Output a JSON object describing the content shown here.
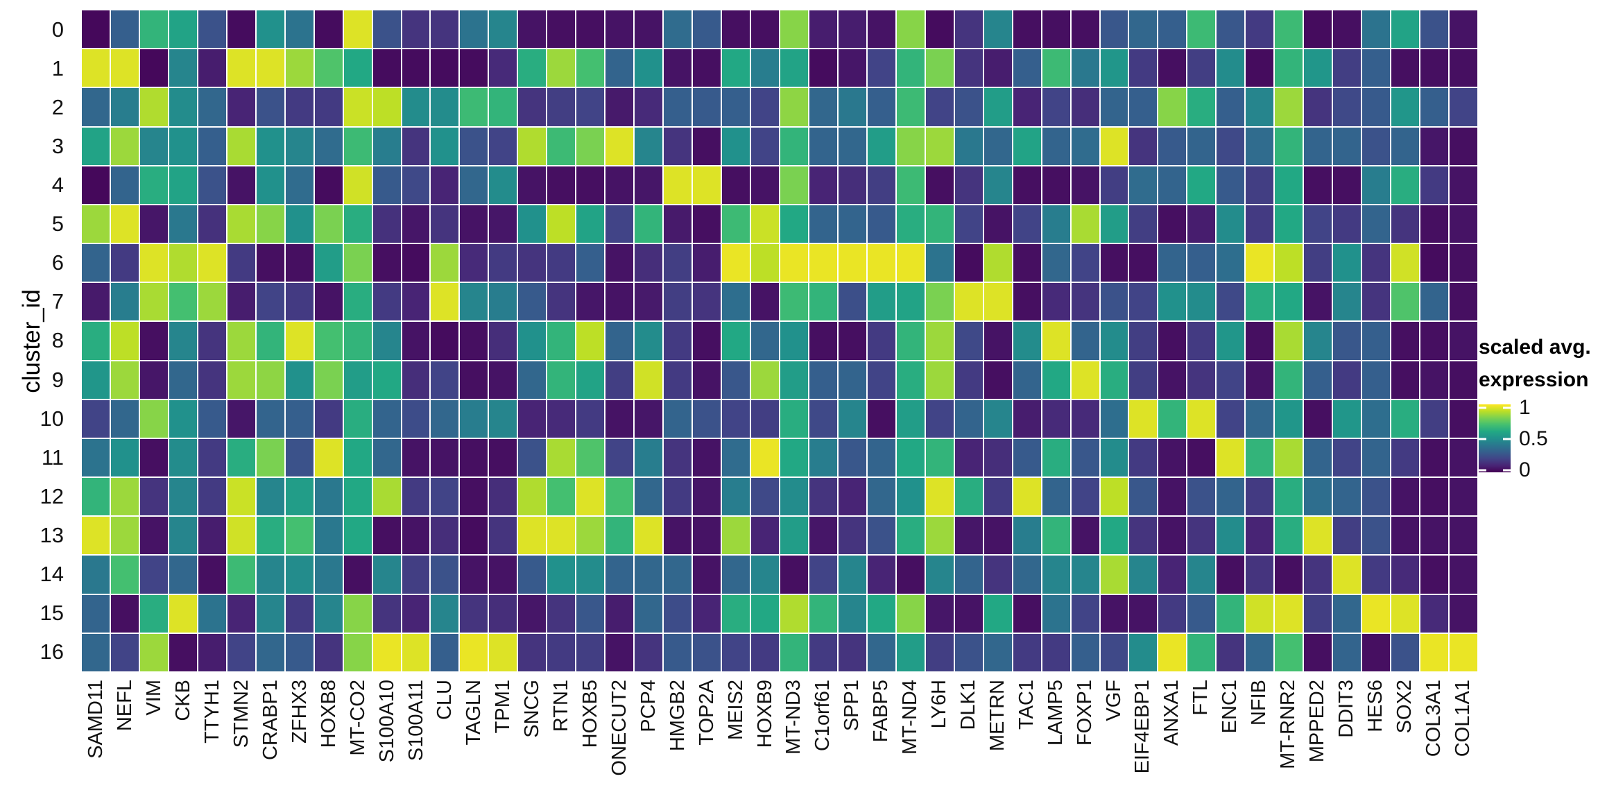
{
  "figure": {
    "y_axis_title": "cluster_id"
  },
  "legend": {
    "title_line1": "scaled avg.",
    "title_line2": "expression",
    "ticks": [
      {
        "label": "1",
        "value": 1
      },
      {
        "label": "0.5",
        "value": 0.5
      },
      {
        "label": "0",
        "value": 0
      }
    ]
  },
  "chart_data": {
    "type": "heatmap",
    "title": "",
    "xlabel": "",
    "ylabel": "cluster_id",
    "colorbar_title": "scaled avg. expression",
    "value_range": [
      0,
      1
    ],
    "grid_line_color": "#ffffff",
    "colormap": {
      "name": "viridis",
      "stops": [
        "#440154",
        "#482475",
        "#414487",
        "#355f8d",
        "#2a788e",
        "#21918c",
        "#22a884",
        "#44bf70",
        "#7ad151",
        "#bddf26",
        "#fde725"
      ]
    },
    "x_categories": [
      "SAMD11",
      "NEFL",
      "VIM",
      "CKB",
      "TTYH1",
      "STMN2",
      "CRABP1",
      "ZFHX3",
      "HOXB8",
      "MT-CO2",
      "S100A10",
      "S100A11",
      "CLU",
      "TAGLN",
      "TPM1",
      "SNCG",
      "RTN1",
      "HOXB5",
      "ONECUT2",
      "PCP4",
      "HMGB2",
      "TOP2A",
      "MEIS2",
      "HOXB9",
      "MT-ND3",
      "C1orf61",
      "SPP1",
      "FABP5",
      "MT-ND4",
      "LY6H",
      "DLK1",
      "METRN",
      "TAC1",
      "LAMP5",
      "FOXP1",
      "VGF",
      "EIF4EBP1",
      "ANXA1",
      "FTL",
      "ENC1",
      "NFIB",
      "MT-RNR2",
      "MPPED2",
      "DDIT3",
      "HES6",
      "SOX2",
      "COL3A1",
      "COL1A1"
    ],
    "y_categories": [
      "0",
      "1",
      "2",
      "3",
      "4",
      "5",
      "6",
      "7",
      "8",
      "9",
      "10",
      "11",
      "12",
      "13",
      "14",
      "15",
      "16"
    ],
    "values": [
      [
        0.02,
        0.3,
        0.65,
        0.58,
        0.25,
        0.03,
        0.5,
        0.38,
        0.03,
        0.95,
        0.25,
        0.15,
        0.15,
        0.38,
        0.45,
        0.05,
        0.04,
        0.04,
        0.05,
        0.05,
        0.35,
        0.28,
        0.04,
        0.04,
        0.82,
        0.08,
        0.08,
        0.05,
        0.82,
        0.03,
        0.15,
        0.45,
        0.04,
        0.04,
        0.04,
        0.27,
        0.33,
        0.3,
        0.68,
        0.27,
        0.17,
        0.68,
        0.03,
        0.04,
        0.38,
        0.58,
        0.25,
        0.05
      ],
      [
        0.95,
        0.95,
        0.02,
        0.45,
        0.08,
        0.95,
        0.95,
        0.85,
        0.72,
        0.6,
        0.03,
        0.03,
        0.03,
        0.03,
        0.12,
        0.62,
        0.85,
        0.7,
        0.32,
        0.5,
        0.05,
        0.04,
        0.6,
        0.42,
        0.58,
        0.03,
        0.06,
        0.2,
        0.65,
        0.8,
        0.15,
        0.08,
        0.3,
        0.68,
        0.4,
        0.52,
        0.17,
        0.04,
        0.18,
        0.48,
        0.03,
        0.65,
        0.52,
        0.18,
        0.3,
        0.04,
        0.04,
        0.04
      ],
      [
        0.33,
        0.42,
        0.88,
        0.48,
        0.33,
        0.1,
        0.25,
        0.17,
        0.17,
        0.92,
        0.9,
        0.48,
        0.48,
        0.68,
        0.65,
        0.15,
        0.18,
        0.2,
        0.07,
        0.12,
        0.3,
        0.28,
        0.3,
        0.2,
        0.83,
        0.33,
        0.4,
        0.3,
        0.68,
        0.2,
        0.25,
        0.55,
        0.1,
        0.2,
        0.13,
        0.32,
        0.3,
        0.82,
        0.62,
        0.3,
        0.45,
        0.85,
        0.15,
        0.22,
        0.28,
        0.52,
        0.3,
        0.2
      ],
      [
        0.58,
        0.85,
        0.45,
        0.5,
        0.3,
        0.87,
        0.5,
        0.45,
        0.35,
        0.68,
        0.42,
        0.15,
        0.5,
        0.25,
        0.2,
        0.88,
        0.68,
        0.8,
        0.95,
        0.45,
        0.15,
        0.04,
        0.5,
        0.2,
        0.65,
        0.32,
        0.33,
        0.55,
        0.82,
        0.85,
        0.4,
        0.33,
        0.58,
        0.32,
        0.35,
        0.95,
        0.15,
        0.28,
        0.32,
        0.22,
        0.35,
        0.65,
        0.32,
        0.32,
        0.25,
        0.32,
        0.06,
        0.04
      ],
      [
        0.02,
        0.32,
        0.62,
        0.58,
        0.25,
        0.05,
        0.5,
        0.35,
        0.03,
        0.93,
        0.28,
        0.22,
        0.1,
        0.33,
        0.48,
        0.05,
        0.04,
        0.04,
        0.05,
        0.06,
        0.95,
        0.95,
        0.04,
        0.05,
        0.8,
        0.1,
        0.13,
        0.18,
        0.68,
        0.04,
        0.15,
        0.45,
        0.04,
        0.04,
        0.05,
        0.18,
        0.35,
        0.32,
        0.6,
        0.28,
        0.18,
        0.6,
        0.04,
        0.04,
        0.42,
        0.62,
        0.17,
        0.05
      ],
      [
        0.85,
        0.95,
        0.06,
        0.4,
        0.14,
        0.87,
        0.82,
        0.5,
        0.8,
        0.62,
        0.14,
        0.06,
        0.15,
        0.05,
        0.06,
        0.5,
        0.9,
        0.58,
        0.2,
        0.65,
        0.07,
        0.04,
        0.68,
        0.92,
        0.6,
        0.32,
        0.32,
        0.28,
        0.62,
        0.65,
        0.2,
        0.05,
        0.2,
        0.42,
        0.87,
        0.55,
        0.18,
        0.04,
        0.08,
        0.48,
        0.17,
        0.6,
        0.2,
        0.17,
        0.32,
        0.15,
        0.04,
        0.05
      ],
      [
        0.32,
        0.17,
        0.95,
        0.88,
        0.95,
        0.17,
        0.04,
        0.04,
        0.55,
        0.8,
        0.04,
        0.03,
        0.85,
        0.12,
        0.17,
        0.15,
        0.17,
        0.3,
        0.05,
        0.13,
        0.18,
        0.08,
        0.97,
        0.9,
        0.97,
        0.97,
        0.97,
        0.97,
        0.97,
        0.38,
        0.03,
        0.88,
        0.04,
        0.33,
        0.2,
        0.04,
        0.04,
        0.32,
        0.3,
        0.36,
        0.97,
        0.9,
        0.18,
        0.5,
        0.15,
        0.93,
        0.03,
        0.04
      ],
      [
        0.07,
        0.42,
        0.87,
        0.7,
        0.85,
        0.08,
        0.2,
        0.17,
        0.05,
        0.62,
        0.17,
        0.1,
        0.95,
        0.45,
        0.42,
        0.28,
        0.15,
        0.06,
        0.05,
        0.07,
        0.18,
        0.15,
        0.36,
        0.05,
        0.68,
        0.65,
        0.24,
        0.55,
        0.58,
        0.8,
        0.95,
        0.95,
        0.04,
        0.12,
        0.15,
        0.25,
        0.2,
        0.5,
        0.48,
        0.22,
        0.62,
        0.6,
        0.05,
        0.45,
        0.15,
        0.72,
        0.32,
        0.04
      ],
      [
        0.62,
        0.9,
        0.04,
        0.45,
        0.15,
        0.85,
        0.65,
        0.95,
        0.7,
        0.65,
        0.45,
        0.05,
        0.03,
        0.04,
        0.13,
        0.5,
        0.65,
        0.9,
        0.32,
        0.48,
        0.17,
        0.04,
        0.6,
        0.33,
        0.5,
        0.04,
        0.04,
        0.17,
        0.65,
        0.85,
        0.22,
        0.05,
        0.48,
        0.95,
        0.32,
        0.48,
        0.18,
        0.04,
        0.17,
        0.52,
        0.04,
        0.87,
        0.45,
        0.27,
        0.3,
        0.04,
        0.04,
        0.05
      ],
      [
        0.52,
        0.85,
        0.06,
        0.33,
        0.15,
        0.85,
        0.83,
        0.5,
        0.8,
        0.55,
        0.6,
        0.13,
        0.2,
        0.04,
        0.05,
        0.33,
        0.65,
        0.58,
        0.18,
        0.93,
        0.17,
        0.05,
        0.27,
        0.85,
        0.55,
        0.3,
        0.32,
        0.2,
        0.62,
        0.85,
        0.17,
        0.04,
        0.32,
        0.6,
        0.95,
        0.62,
        0.18,
        0.05,
        0.15,
        0.2,
        0.05,
        0.65,
        0.3,
        0.17,
        0.3,
        0.04,
        0.05,
        0.04
      ],
      [
        0.2,
        0.33,
        0.82,
        0.5,
        0.28,
        0.06,
        0.32,
        0.3,
        0.17,
        0.62,
        0.32,
        0.23,
        0.33,
        0.42,
        0.45,
        0.1,
        0.12,
        0.17,
        0.05,
        0.06,
        0.32,
        0.25,
        0.2,
        0.18,
        0.62,
        0.22,
        0.45,
        0.04,
        0.55,
        0.2,
        0.32,
        0.45,
        0.08,
        0.12,
        0.12,
        0.36,
        0.95,
        0.65,
        0.95,
        0.2,
        0.33,
        0.52,
        0.04,
        0.52,
        0.36,
        0.62,
        0.18,
        0.04
      ],
      [
        0.38,
        0.5,
        0.04,
        0.48,
        0.17,
        0.62,
        0.8,
        0.25,
        0.95,
        0.6,
        0.33,
        0.05,
        0.05,
        0.04,
        0.04,
        0.25,
        0.87,
        0.72,
        0.2,
        0.42,
        0.15,
        0.05,
        0.35,
        0.97,
        0.6,
        0.42,
        0.27,
        0.32,
        0.6,
        0.65,
        0.1,
        0.13,
        0.28,
        0.62,
        0.27,
        0.48,
        0.17,
        0.05,
        0.04,
        0.95,
        0.65,
        0.87,
        0.32,
        0.2,
        0.32,
        0.17,
        0.04,
        0.05
      ],
      [
        0.65,
        0.85,
        0.15,
        0.45,
        0.17,
        0.92,
        0.45,
        0.55,
        0.4,
        0.6,
        0.87,
        0.17,
        0.2,
        0.04,
        0.13,
        0.88,
        0.7,
        0.95,
        0.7,
        0.33,
        0.17,
        0.06,
        0.42,
        0.22,
        0.48,
        0.15,
        0.1,
        0.33,
        0.5,
        0.95,
        0.62,
        0.17,
        0.95,
        0.32,
        0.2,
        0.9,
        0.27,
        0.05,
        0.25,
        0.32,
        0.17,
        0.62,
        0.36,
        0.32,
        0.25,
        0.05,
        0.04,
        0.05
      ],
      [
        0.95,
        0.85,
        0.05,
        0.45,
        0.08,
        0.93,
        0.62,
        0.7,
        0.4,
        0.6,
        0.04,
        0.05,
        0.13,
        0.03,
        0.15,
        0.95,
        0.95,
        0.85,
        0.65,
        0.95,
        0.05,
        0.05,
        0.85,
        0.1,
        0.55,
        0.06,
        0.15,
        0.25,
        0.62,
        0.85,
        0.06,
        0.05,
        0.42,
        0.65,
        0.05,
        0.6,
        0.15,
        0.05,
        0.15,
        0.48,
        0.1,
        0.62,
        0.95,
        0.18,
        0.25,
        0.05,
        0.05,
        0.05
      ],
      [
        0.4,
        0.7,
        0.2,
        0.33,
        0.04,
        0.68,
        0.45,
        0.48,
        0.4,
        0.04,
        0.45,
        0.18,
        0.25,
        0.05,
        0.05,
        0.28,
        0.5,
        0.48,
        0.32,
        0.33,
        0.33,
        0.05,
        0.33,
        0.45,
        0.04,
        0.2,
        0.45,
        0.1,
        0.04,
        0.45,
        0.32,
        0.15,
        0.33,
        0.45,
        0.45,
        0.87,
        0.45,
        0.1,
        0.45,
        0.04,
        0.15,
        0.04,
        0.15,
        0.95,
        0.17,
        0.12,
        0.04,
        0.05
      ],
      [
        0.32,
        0.04,
        0.62,
        0.95,
        0.38,
        0.1,
        0.45,
        0.17,
        0.45,
        0.82,
        0.15,
        0.1,
        0.45,
        0.15,
        0.13,
        0.06,
        0.15,
        0.27,
        0.08,
        0.33,
        0.23,
        0.1,
        0.62,
        0.6,
        0.88,
        0.65,
        0.45,
        0.6,
        0.82,
        0.06,
        0.05,
        0.6,
        0.04,
        0.38,
        0.2,
        0.05,
        0.05,
        0.17,
        0.28,
        0.65,
        0.93,
        0.95,
        0.18,
        0.33,
        0.97,
        0.95,
        0.12,
        0.05
      ],
      [
        0.33,
        0.2,
        0.85,
        0.04,
        0.08,
        0.2,
        0.33,
        0.28,
        0.15,
        0.82,
        0.97,
        0.95,
        0.3,
        0.97,
        0.95,
        0.15,
        0.17,
        0.18,
        0.05,
        0.15,
        0.28,
        0.25,
        0.2,
        0.17,
        0.65,
        0.17,
        0.15,
        0.33,
        0.55,
        0.18,
        0.25,
        0.33,
        0.17,
        0.17,
        0.3,
        0.22,
        0.48,
        0.97,
        0.65,
        0.15,
        0.33,
        0.7,
        0.04,
        0.32,
        0.04,
        0.25,
        0.97,
        0.97
      ]
    ]
  }
}
